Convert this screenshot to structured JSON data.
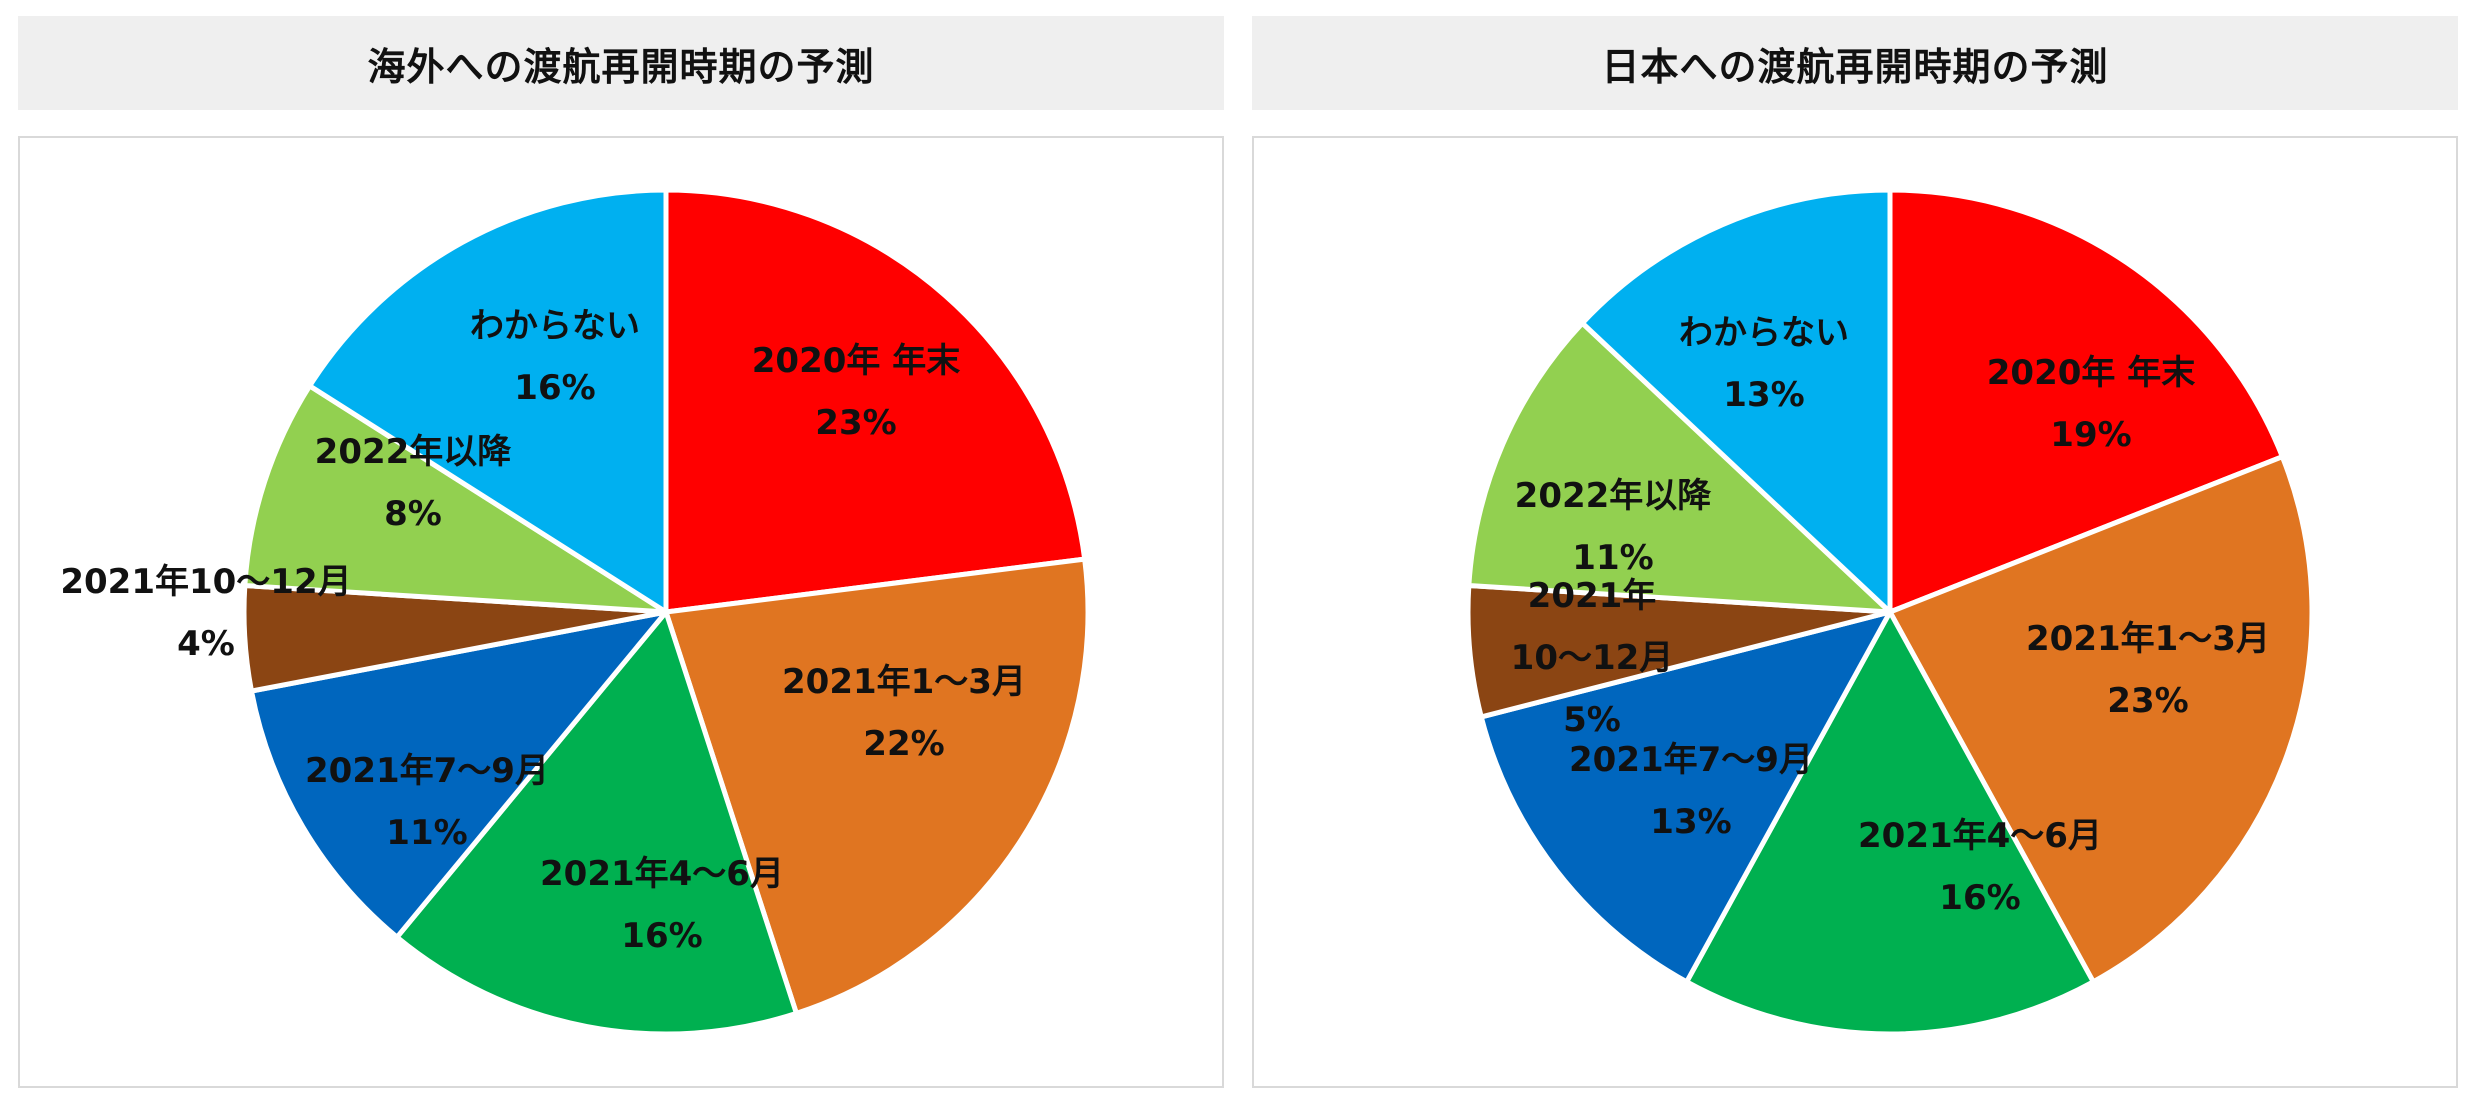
{
  "chart_data": [
    {
      "type": "pie",
      "title": "海外への渡航再開時期の予測",
      "start_angle_deg": 0,
      "direction": "clockwise",
      "slices": [
        {
          "label_lines": [
            "2020年 年末"
          ],
          "value": 23,
          "value_label": "23%",
          "color": "#ff0000"
        },
        {
          "label_lines": [
            "2021年1〜3月"
          ],
          "value": 22,
          "value_label": "22%",
          "color": "#e07521"
        },
        {
          "label_lines": [
            "2021年4〜6月"
          ],
          "value": 16,
          "value_label": "16%",
          "color": "#00b050"
        },
        {
          "label_lines": [
            "2021年7〜9月"
          ],
          "value": 11,
          "value_label": "11%",
          "color": "#0066be"
        },
        {
          "label_lines": [
            "2021年10〜12月"
          ],
          "value": 4,
          "value_label": "4%",
          "color": "#8b4513"
        },
        {
          "label_lines": [
            "2022年以降"
          ],
          "value": 8,
          "value_label": "8%",
          "color": "#92d050"
        },
        {
          "label_lines": [
            "わからない"
          ],
          "value": 16,
          "value_label": "16%",
          "color": "#00b0f0"
        }
      ]
    },
    {
      "type": "pie",
      "title": "日本への渡航再開時期の予測",
      "start_angle_deg": 0,
      "direction": "clockwise",
      "slices": [
        {
          "label_lines": [
            "2020年 年末"
          ],
          "value": 19,
          "value_label": "19%",
          "color": "#ff0000"
        },
        {
          "label_lines": [
            "2021年1〜3月"
          ],
          "value": 23,
          "value_label": "23%",
          "color": "#e07521"
        },
        {
          "label_lines": [
            "2021年4〜6月"
          ],
          "value": 16,
          "value_label": "16%",
          "color": "#00b050"
        },
        {
          "label_lines": [
            "2021年7〜9月"
          ],
          "value": 13,
          "value_label": "13%",
          "color": "#0066be"
        },
        {
          "label_lines": [
            "2021年",
            "10〜12月"
          ],
          "value": 5,
          "value_label": "5%",
          "color": "#8b4513"
        },
        {
          "label_lines": [
            "2022年以降"
          ],
          "value": 11,
          "value_label": "11%",
          "color": "#92d050"
        },
        {
          "label_lines": [
            "わからない"
          ],
          "value": 13,
          "value_label": "13%",
          "color": "#00b0f0"
        }
      ]
    }
  ]
}
